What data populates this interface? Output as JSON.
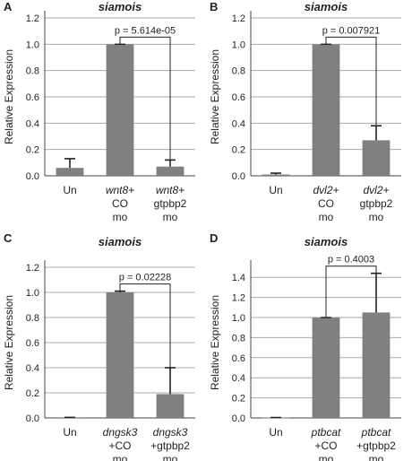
{
  "figure": {
    "background": "#ffffff",
    "gridline_color": "#aaaaaa",
    "axis_color": "#444444",
    "bar_color": "#808080",
    "error_color": "#222222"
  },
  "chart_data": [
    {
      "type": "bar",
      "panel_label": "A",
      "title": "siamois",
      "ylabel": "Relative Expression",
      "ylim": [
        0,
        1.2
      ],
      "ytick_values": [
        0,
        0.2,
        0.4,
        0.6,
        0.8,
        1.0,
        1.2
      ],
      "ytick_labels": [
        "0.0",
        "0.2",
        "0.4",
        "0.6",
        "0.8",
        "1.0",
        "1.2"
      ],
      "categories": [
        {
          "lines": [
            {
              "text": "Un",
              "italic": false
            }
          ]
        },
        {
          "lines": [
            {
              "text": "wnt8+",
              "italic": true
            },
            {
              "text": "CO",
              "italic": false
            },
            {
              "text": "mo",
              "italic": false
            }
          ]
        },
        {
          "lines": [
            {
              "text": "wnt8+",
              "italic": true
            },
            {
              "text": "gtpbp2",
              "italic": false
            },
            {
              "text": "mo",
              "italic": false
            }
          ]
        }
      ],
      "values": [
        0.06,
        1.0,
        0.07
      ],
      "errors": [
        0.07,
        0.0,
        0.05
      ],
      "comparison": {
        "from": 1,
        "to": 2,
        "label": "p = 5.614e-05"
      }
    },
    {
      "type": "bar",
      "panel_label": "B",
      "title": "siamois",
      "ylabel": "Relative Expression",
      "ylim": [
        0,
        1.2
      ],
      "ytick_values": [
        0,
        0.2,
        0.4,
        0.6,
        0.8,
        1.0,
        1.2
      ],
      "ytick_labels": [
        "0.0",
        "0.2",
        "0.4",
        "0.6",
        "0.8",
        "1.0",
        "1.2"
      ],
      "categories": [
        {
          "lines": [
            {
              "text": "Un",
              "italic": false
            }
          ]
        },
        {
          "lines": [
            {
              "text": "dvl2+",
              "italic": true
            },
            {
              "text": "CO",
              "italic": false
            },
            {
              "text": "mo",
              "italic": false
            }
          ]
        },
        {
          "lines": [
            {
              "text": "dvl2+",
              "italic": true
            },
            {
              "text": "gtpbp2",
              "italic": false
            },
            {
              "text": "mo",
              "italic": false
            }
          ]
        }
      ],
      "values": [
        0.01,
        1.0,
        0.27
      ],
      "errors": [
        0.01,
        0.0,
        0.11
      ],
      "comparison": {
        "from": 1,
        "to": 2,
        "label": "p = 0.007921"
      }
    },
    {
      "type": "bar",
      "panel_label": "C",
      "title": "siamois",
      "ylabel": "Relative Expression",
      "ylim": [
        0,
        1.2
      ],
      "ytick_values": [
        0,
        0.2,
        0.4,
        0.6,
        0.8,
        1.0,
        1.2
      ],
      "ytick_labels": [
        "0.0",
        "0.2",
        "0.4",
        "0.6",
        "0.8",
        "1.0",
        "1.2"
      ],
      "categories": [
        {
          "lines": [
            {
              "text": "Un",
              "italic": false
            }
          ]
        },
        {
          "lines": [
            {
              "text": "dngsk3",
              "italic": true
            },
            {
              "text": "+CO",
              "italic": false
            },
            {
              "text": "mo",
              "italic": false
            }
          ]
        },
        {
          "lines": [
            {
              "text": "dngsk3",
              "italic": true
            },
            {
              "text": "+gtpbp2",
              "italic": false
            },
            {
              "text": "mo",
              "italic": false
            }
          ]
        }
      ],
      "values": [
        0.005,
        1.0,
        0.19
      ],
      "errors": [
        0.0,
        0.01,
        0.21
      ],
      "comparison": {
        "from": 1,
        "to": 2,
        "label": "p = 0.02228"
      }
    },
    {
      "type": "bar",
      "panel_label": "D",
      "title": "siamois",
      "ylabel": "Relative Expression",
      "ylim": [
        0,
        1.5
      ],
      "ytick_values": [
        0,
        0.2,
        0.4,
        0.6,
        0.8,
        1.0,
        1.2,
        1.4
      ],
      "ytick_labels": [
        "0.0",
        "0.2",
        "0.4",
        "0.6",
        "0.8",
        "1.0",
        "1.2",
        "1.4"
      ],
      "categories": [
        {
          "lines": [
            {
              "text": "Un",
              "italic": false
            }
          ]
        },
        {
          "lines": [
            {
              "text": "ptbcat",
              "italic": true
            },
            {
              "text": "+CO",
              "italic": false
            },
            {
              "text": "mo",
              "italic": false
            }
          ]
        },
        {
          "lines": [
            {
              "text": "ptbcat",
              "italic": true
            },
            {
              "text": "+gtpbp2",
              "italic": false
            },
            {
              "text": "mo",
              "italic": false
            }
          ]
        }
      ],
      "values": [
        0.005,
        1.0,
        1.05
      ],
      "errors": [
        0.0,
        0.0,
        0.39
      ],
      "comparison": {
        "from": 1,
        "to": 2,
        "label": "p = 0.4003"
      }
    }
  ]
}
